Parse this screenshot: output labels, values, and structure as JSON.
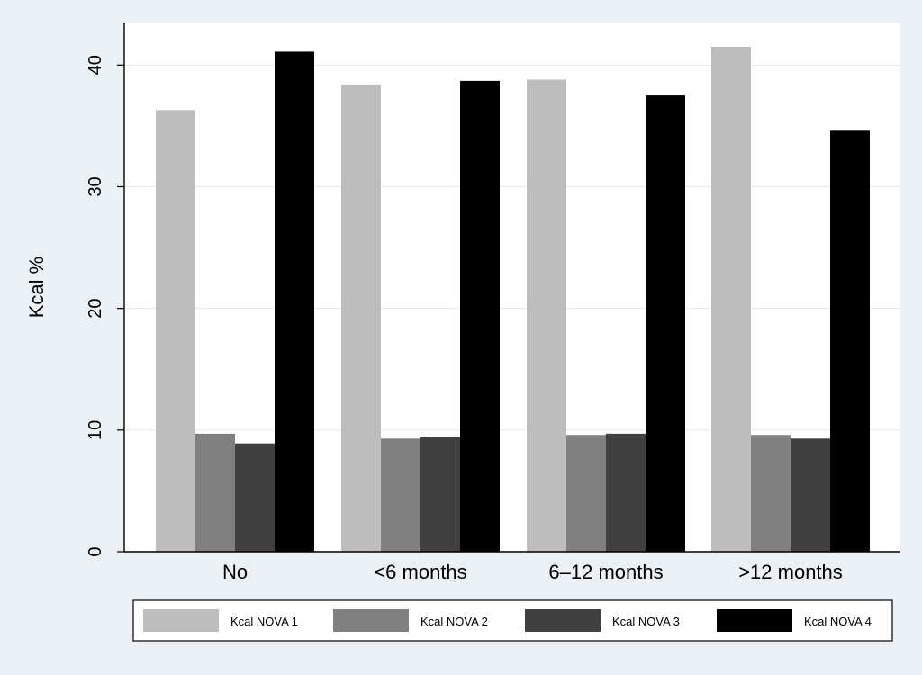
{
  "chart_data": {
    "type": "bar",
    "title": "",
    "xlabel": "",
    "ylabel": "Kcal %",
    "ylim": [
      0,
      43.5
    ],
    "yticks": [
      0,
      10,
      20,
      30,
      40
    ],
    "grid": true,
    "legend_position": "bottom",
    "categories": [
      "No",
      "<6 months",
      "6–12 months",
      ">12 months"
    ],
    "series": [
      {
        "name": "Kcal NOVA 1",
        "color": "#bdbdbd",
        "values": [
          36.3,
          38.4,
          38.8,
          41.5
        ]
      },
      {
        "name": "Kcal NOVA 2",
        "color": "#808080",
        "values": [
          9.7,
          9.3,
          9.6,
          9.6
        ]
      },
      {
        "name": "Kcal NOVA 3",
        "color": "#404040",
        "values": [
          8.9,
          9.4,
          9.7,
          9.3
        ]
      },
      {
        "name": "Kcal NOVA 4",
        "color": "#000000",
        "values": [
          41.1,
          38.7,
          37.5,
          34.6
        ]
      }
    ]
  }
}
